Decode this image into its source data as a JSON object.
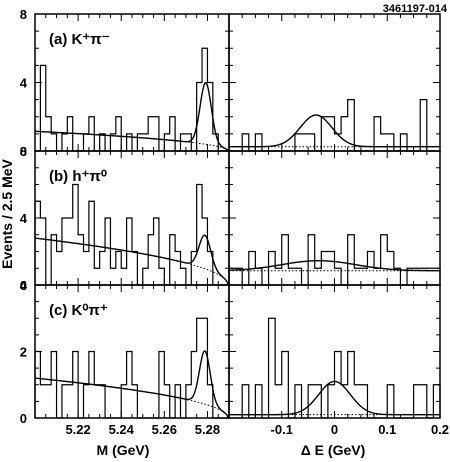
{
  "chart_data": {
    "type": "histogram-grid",
    "figure_id": "3461197-014",
    "ylabel": "Events / 2.5 MeV",
    "xlabel_left": "M (GeV)",
    "xlabel_right": "Δ E (GeV)",
    "x_left": {
      "range": [
        5.2,
        5.29
      ],
      "tick_values": [
        5.22,
        5.24,
        5.26,
        5.28
      ],
      "tick_labels": [
        "5.22",
        "5.24",
        "5.26",
        "5.28"
      ]
    },
    "x_right": {
      "range": [
        -0.2,
        0.2
      ],
      "tick_values": [
        -0.1,
        0,
        0.1,
        0.2
      ],
      "tick_labels": [
        "-0.1",
        "0",
        "0.1",
        "0.2"
      ]
    },
    "rows": [
      {
        "label": "(a)  K⁺π⁻",
        "ylim": [
          0,
          8
        ],
        "y_tick_values": [
          0,
          4,
          8
        ],
        "y_tick_labels": [
          "0",
          "4",
          "8"
        ],
        "left_hist": [
          0,
          5,
          2,
          1,
          0,
          1,
          2,
          0,
          0,
          1,
          2,
          0,
          1,
          0,
          1,
          2,
          0,
          1,
          0,
          1,
          1,
          2,
          2,
          0,
          1,
          2,
          0,
          1,
          1,
          0,
          4,
          6,
          4,
          1,
          0,
          0
        ],
        "right_hist": [
          0,
          0,
          1,
          0,
          1,
          0,
          0,
          0,
          0,
          0,
          1,
          1,
          1,
          0,
          2,
          2,
          1,
          2,
          3,
          0,
          0,
          0,
          2,
          1,
          1,
          0,
          1,
          0,
          0,
          3,
          0,
          0
        ],
        "left_fit": {
          "bkg_a": 1.15,
          "bkg_b": 0.0,
          "sig_a": 3.6,
          "mean": 5.2792,
          "sigma": 0.0026
        },
        "right_fit": {
          "bkg_a": 0.25,
          "bkg_b": 0.0,
          "sig_a": 1.85,
          "mean": -0.035,
          "sigma": 0.03
        }
      },
      {
        "label": "(b)  h⁺π⁰",
        "ylim": [
          0,
          8
        ],
        "y_tick_values": [
          0,
          4,
          8
        ],
        "y_tick_labels": [
          "0",
          "4",
          "8"
        ],
        "left_hist": [
          5,
          4,
          0,
          3,
          2,
          4,
          4,
          6,
          3,
          2,
          5,
          1,
          2,
          4,
          1,
          2,
          1,
          4,
          2,
          0,
          1,
          3,
          4,
          1,
          0,
          3,
          2,
          1,
          0,
          2,
          6,
          4,
          2,
          0,
          0,
          0
        ],
        "right_hist": [
          1,
          1,
          0,
          2,
          1,
          0,
          2,
          1,
          3,
          1,
          1,
          0,
          3,
          1,
          2,
          2,
          1,
          0,
          3,
          1,
          1,
          2,
          1,
          3,
          2,
          1,
          0,
          1,
          1,
          1,
          1,
          1
        ],
        "left_fit": {
          "bkg_a": 2.8,
          "bkg_b": 0.0,
          "sig_a": 2.0,
          "mean": 5.2788,
          "sigma": 0.0027
        },
        "right_fit": {
          "bkg_a": 0.85,
          "bkg_b": 0.0,
          "sig_a": 0.6,
          "mean": -0.03,
          "sigma": 0.07
        }
      },
      {
        "label": "(c)  K⁰π⁺",
        "ylim": [
          0,
          4
        ],
        "y_tick_values": [
          0,
          2,
          4
        ],
        "y_tick_labels": [
          "0",
          "2",
          "4"
        ],
        "left_hist": [
          2,
          1,
          1,
          2,
          0,
          1,
          1,
          2,
          0,
          1,
          2,
          1,
          1,
          0,
          0,
          0,
          1,
          2,
          1,
          0,
          0,
          0,
          0,
          2,
          1,
          0,
          1,
          0,
          1,
          2,
          3,
          3,
          1,
          0,
          0,
          0
        ],
        "right_hist": [
          0,
          0,
          1,
          0,
          1,
          0,
          3,
          1,
          2,
          0,
          1,
          0,
          1,
          1,
          0,
          1,
          2,
          1,
          2,
          1,
          1,
          0,
          0,
          0,
          1,
          0,
          0,
          0,
          1,
          1,
          0,
          1
        ],
        "left_fit": {
          "bkg_a": 1.2,
          "bkg_b": 0.0,
          "sig_a": 1.6,
          "mean": 5.2788,
          "sigma": 0.0025
        },
        "right_fit": {
          "bkg_a": 0.1,
          "bkg_b": 0.0,
          "sig_a": 1.0,
          "mean": 0.0,
          "sigma": 0.03
        }
      }
    ]
  }
}
